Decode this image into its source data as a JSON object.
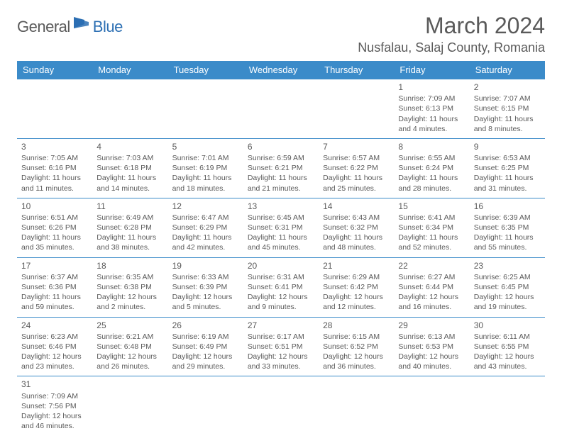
{
  "logo": {
    "part1": "General",
    "part2": "Blue"
  },
  "title": "March 2024",
  "location": "Nusfalau, Salaj County, Romania",
  "colors": {
    "header_bg": "#3b8bc9",
    "header_text": "#ffffff",
    "border": "#3b8bc9",
    "text": "#5a5a5a",
    "logo_blue": "#2c6fb3"
  },
  "day_headers": [
    "Sunday",
    "Monday",
    "Tuesday",
    "Wednesday",
    "Thursday",
    "Friday",
    "Saturday"
  ],
  "weeks": [
    [
      null,
      null,
      null,
      null,
      null,
      {
        "n": "1",
        "sr": "7:09 AM",
        "ss": "6:13 PM",
        "dl": "11 hours and 4 minutes."
      },
      {
        "n": "2",
        "sr": "7:07 AM",
        "ss": "6:15 PM",
        "dl": "11 hours and 8 minutes."
      }
    ],
    [
      {
        "n": "3",
        "sr": "7:05 AM",
        "ss": "6:16 PM",
        "dl": "11 hours and 11 minutes."
      },
      {
        "n": "4",
        "sr": "7:03 AM",
        "ss": "6:18 PM",
        "dl": "11 hours and 14 minutes."
      },
      {
        "n": "5",
        "sr": "7:01 AM",
        "ss": "6:19 PM",
        "dl": "11 hours and 18 minutes."
      },
      {
        "n": "6",
        "sr": "6:59 AM",
        "ss": "6:21 PM",
        "dl": "11 hours and 21 minutes."
      },
      {
        "n": "7",
        "sr": "6:57 AM",
        "ss": "6:22 PM",
        "dl": "11 hours and 25 minutes."
      },
      {
        "n": "8",
        "sr": "6:55 AM",
        "ss": "6:24 PM",
        "dl": "11 hours and 28 minutes."
      },
      {
        "n": "9",
        "sr": "6:53 AM",
        "ss": "6:25 PM",
        "dl": "11 hours and 31 minutes."
      }
    ],
    [
      {
        "n": "10",
        "sr": "6:51 AM",
        "ss": "6:26 PM",
        "dl": "11 hours and 35 minutes."
      },
      {
        "n": "11",
        "sr": "6:49 AM",
        "ss": "6:28 PM",
        "dl": "11 hours and 38 minutes."
      },
      {
        "n": "12",
        "sr": "6:47 AM",
        "ss": "6:29 PM",
        "dl": "11 hours and 42 minutes."
      },
      {
        "n": "13",
        "sr": "6:45 AM",
        "ss": "6:31 PM",
        "dl": "11 hours and 45 minutes."
      },
      {
        "n": "14",
        "sr": "6:43 AM",
        "ss": "6:32 PM",
        "dl": "11 hours and 48 minutes."
      },
      {
        "n": "15",
        "sr": "6:41 AM",
        "ss": "6:34 PM",
        "dl": "11 hours and 52 minutes."
      },
      {
        "n": "16",
        "sr": "6:39 AM",
        "ss": "6:35 PM",
        "dl": "11 hours and 55 minutes."
      }
    ],
    [
      {
        "n": "17",
        "sr": "6:37 AM",
        "ss": "6:36 PM",
        "dl": "11 hours and 59 minutes."
      },
      {
        "n": "18",
        "sr": "6:35 AM",
        "ss": "6:38 PM",
        "dl": "12 hours and 2 minutes."
      },
      {
        "n": "19",
        "sr": "6:33 AM",
        "ss": "6:39 PM",
        "dl": "12 hours and 5 minutes."
      },
      {
        "n": "20",
        "sr": "6:31 AM",
        "ss": "6:41 PM",
        "dl": "12 hours and 9 minutes."
      },
      {
        "n": "21",
        "sr": "6:29 AM",
        "ss": "6:42 PM",
        "dl": "12 hours and 12 minutes."
      },
      {
        "n": "22",
        "sr": "6:27 AM",
        "ss": "6:44 PM",
        "dl": "12 hours and 16 minutes."
      },
      {
        "n": "23",
        "sr": "6:25 AM",
        "ss": "6:45 PM",
        "dl": "12 hours and 19 minutes."
      }
    ],
    [
      {
        "n": "24",
        "sr": "6:23 AM",
        "ss": "6:46 PM",
        "dl": "12 hours and 23 minutes."
      },
      {
        "n": "25",
        "sr": "6:21 AM",
        "ss": "6:48 PM",
        "dl": "12 hours and 26 minutes."
      },
      {
        "n": "26",
        "sr": "6:19 AM",
        "ss": "6:49 PM",
        "dl": "12 hours and 29 minutes."
      },
      {
        "n": "27",
        "sr": "6:17 AM",
        "ss": "6:51 PM",
        "dl": "12 hours and 33 minutes."
      },
      {
        "n": "28",
        "sr": "6:15 AM",
        "ss": "6:52 PM",
        "dl": "12 hours and 36 minutes."
      },
      {
        "n": "29",
        "sr": "6:13 AM",
        "ss": "6:53 PM",
        "dl": "12 hours and 40 minutes."
      },
      {
        "n": "30",
        "sr": "6:11 AM",
        "ss": "6:55 PM",
        "dl": "12 hours and 43 minutes."
      }
    ],
    [
      {
        "n": "31",
        "sr": "7:09 AM",
        "ss": "7:56 PM",
        "dl": "12 hours and 46 minutes."
      },
      null,
      null,
      null,
      null,
      null,
      null
    ]
  ],
  "labels": {
    "sunrise": "Sunrise: ",
    "sunset": "Sunset: ",
    "daylight": "Daylight: "
  }
}
